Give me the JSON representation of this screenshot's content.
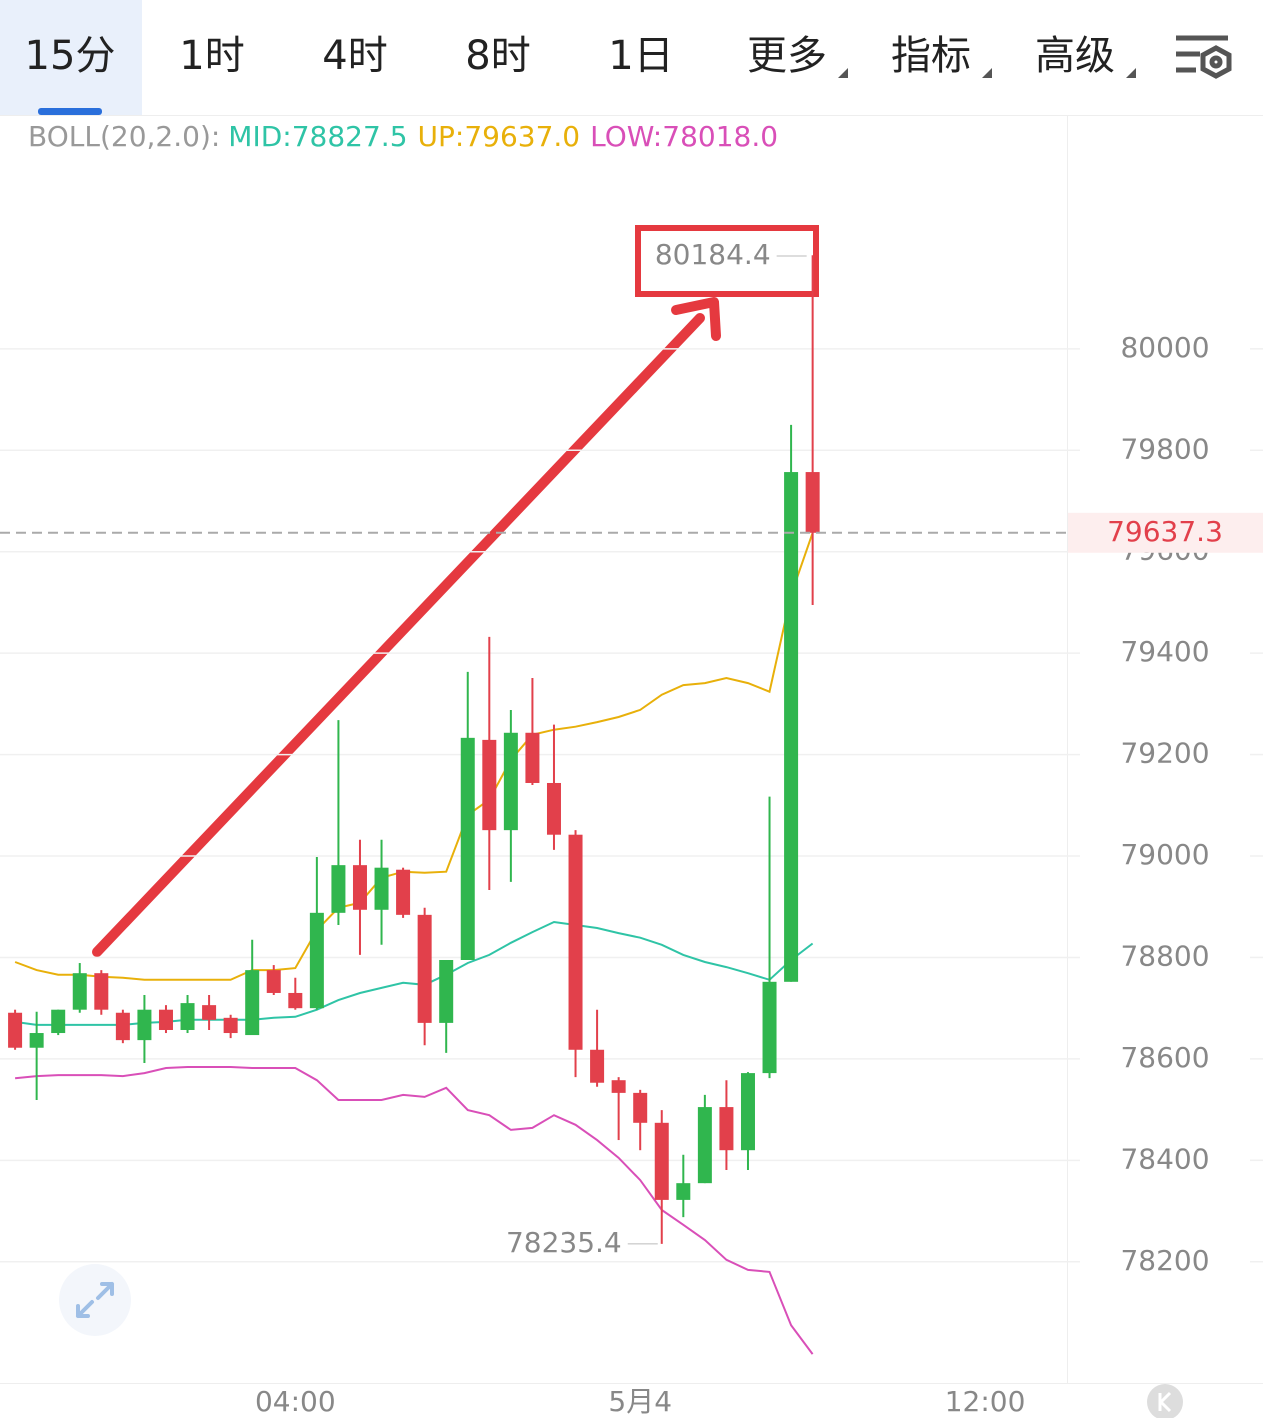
{
  "tabs": [
    "15分",
    "1时",
    "4时",
    "8时",
    "1日",
    "更多",
    "指标",
    "高级"
  ],
  "active_tab": 0,
  "chart_data": {
    "type": "candlestick",
    "indicator": "BOLL(20,2.0):",
    "up_color": "#30b64e",
    "down_color": "#e2404b",
    "open": [
      78691,
      78622,
      78651,
      78697,
      78769,
      78691,
      78637,
      78697,
      78657,
      78706,
      78681,
      78647,
      78775,
      78730,
      78700,
      78888,
      78982,
      78894,
      78973,
      78884,
      78671,
      78795,
      79229,
      79051,
      79243,
      79144,
      79042,
      78618,
      78558,
      78533,
      78474,
      78322,
      78355,
      78505,
      78420,
      78572,
      78752,
      79757
    ],
    "high": [
      78697,
      78693,
      78697,
      78789,
      78775,
      78697,
      78726,
      78706,
      78726,
      78726,
      78687,
      78835,
      78785,
      78760,
      78998,
      79268,
      79032,
      79032,
      78977,
      78898,
      78795,
      79363,
      79432,
      79288,
      79351,
      79259,
      79051,
      78697,
      78564,
      78539,
      78499,
      78411,
      78529,
      78558,
      78574,
      79117,
      79850,
      80184.4
    ],
    "low": [
      78618,
      78519,
      78647,
      78691,
      78687,
      78631,
      78592,
      78651,
      78651,
      78657,
      78641,
      78647,
      78726,
      78697,
      78697,
      78864,
      78805,
      78825,
      78878,
      78627,
      78612,
      78795,
      78933,
      78949,
      79140,
      79012,
      78564,
      78545,
      78440,
      78420,
      78235.4,
      78288,
      78355,
      78381,
      78381,
      78562,
      78752,
      79495
    ],
    "close": [
      78622,
      78651,
      78697,
      78769,
      78697,
      78637,
      78697,
      78657,
      78710,
      78677,
      78651,
      78775,
      78730,
      78700,
      78888,
      78982,
      78894,
      78977,
      78884,
      78671,
      78795,
      79233,
      79051,
      79243,
      79144,
      79042,
      78618,
      78553,
      78533,
      78474,
      78322,
      78355,
      78505,
      78420,
      78572,
      78752,
      79757,
      79637.3
    ],
    "series": [
      {
        "name": "MID:",
        "color": "#2fc4a6",
        "current_label": "78827.5",
        "values": [
          78673,
          78667,
          78667,
          78667,
          78667,
          78667,
          78671,
          78673,
          78677,
          78677,
          78677,
          78677,
          78681,
          78683,
          78697,
          78716,
          78730,
          78740,
          78750,
          78746,
          78766,
          78789,
          78805,
          78829,
          78850,
          78870,
          78864,
          78858,
          78848,
          78839,
          78825,
          78805,
          78791,
          78781,
          78769,
          78756,
          78795,
          78827.5
        ]
      },
      {
        "name": "UP:",
        "color": "#e8b00a",
        "current_label": "79637.0",
        "values": [
          78791,
          78775,
          78766,
          78766,
          78762,
          78760,
          78756,
          78756,
          78756,
          78756,
          78756,
          78775,
          78775,
          78779,
          78854,
          78898,
          78908,
          78957,
          78969,
          78967,
          78969,
          79081,
          79111,
          79190,
          79239,
          79249,
          79255,
          79264,
          79274,
          79288,
          79318,
          79337,
          79341,
          79351,
          79341,
          79324,
          79515,
          79637.0
        ]
      },
      {
        "name": "LOW:",
        "color": "#d94fb8",
        "current_label": "78018.0",
        "values": [
          78562,
          78566,
          78568,
          78568,
          78568,
          78566,
          78572,
          78582,
          78584,
          78584,
          78584,
          78582,
          78582,
          78582,
          78558,
          78519,
          78519,
          78519,
          78529,
          78525,
          78543,
          78499,
          78489,
          78460,
          78464,
          78489,
          78470,
          78440,
          78405,
          78361,
          78302,
          78273,
          78243,
          78204,
          78184,
          78180,
          78075,
          78018.0
        ]
      }
    ],
    "xlim": [
      -0.7,
      48.8
    ],
    "xticks": [
      {
        "value": 13,
        "label": "04:00"
      },
      {
        "value": 29,
        "label": "5月4"
      },
      {
        "value": 45,
        "label": "12:00"
      }
    ],
    "ylim": [
      77961,
      80461
    ],
    "yticks": [
      78200,
      78400,
      78600,
      78800,
      79000,
      79200,
      79400,
      79600,
      79800,
      80000
    ],
    "grid": true
  }
}
